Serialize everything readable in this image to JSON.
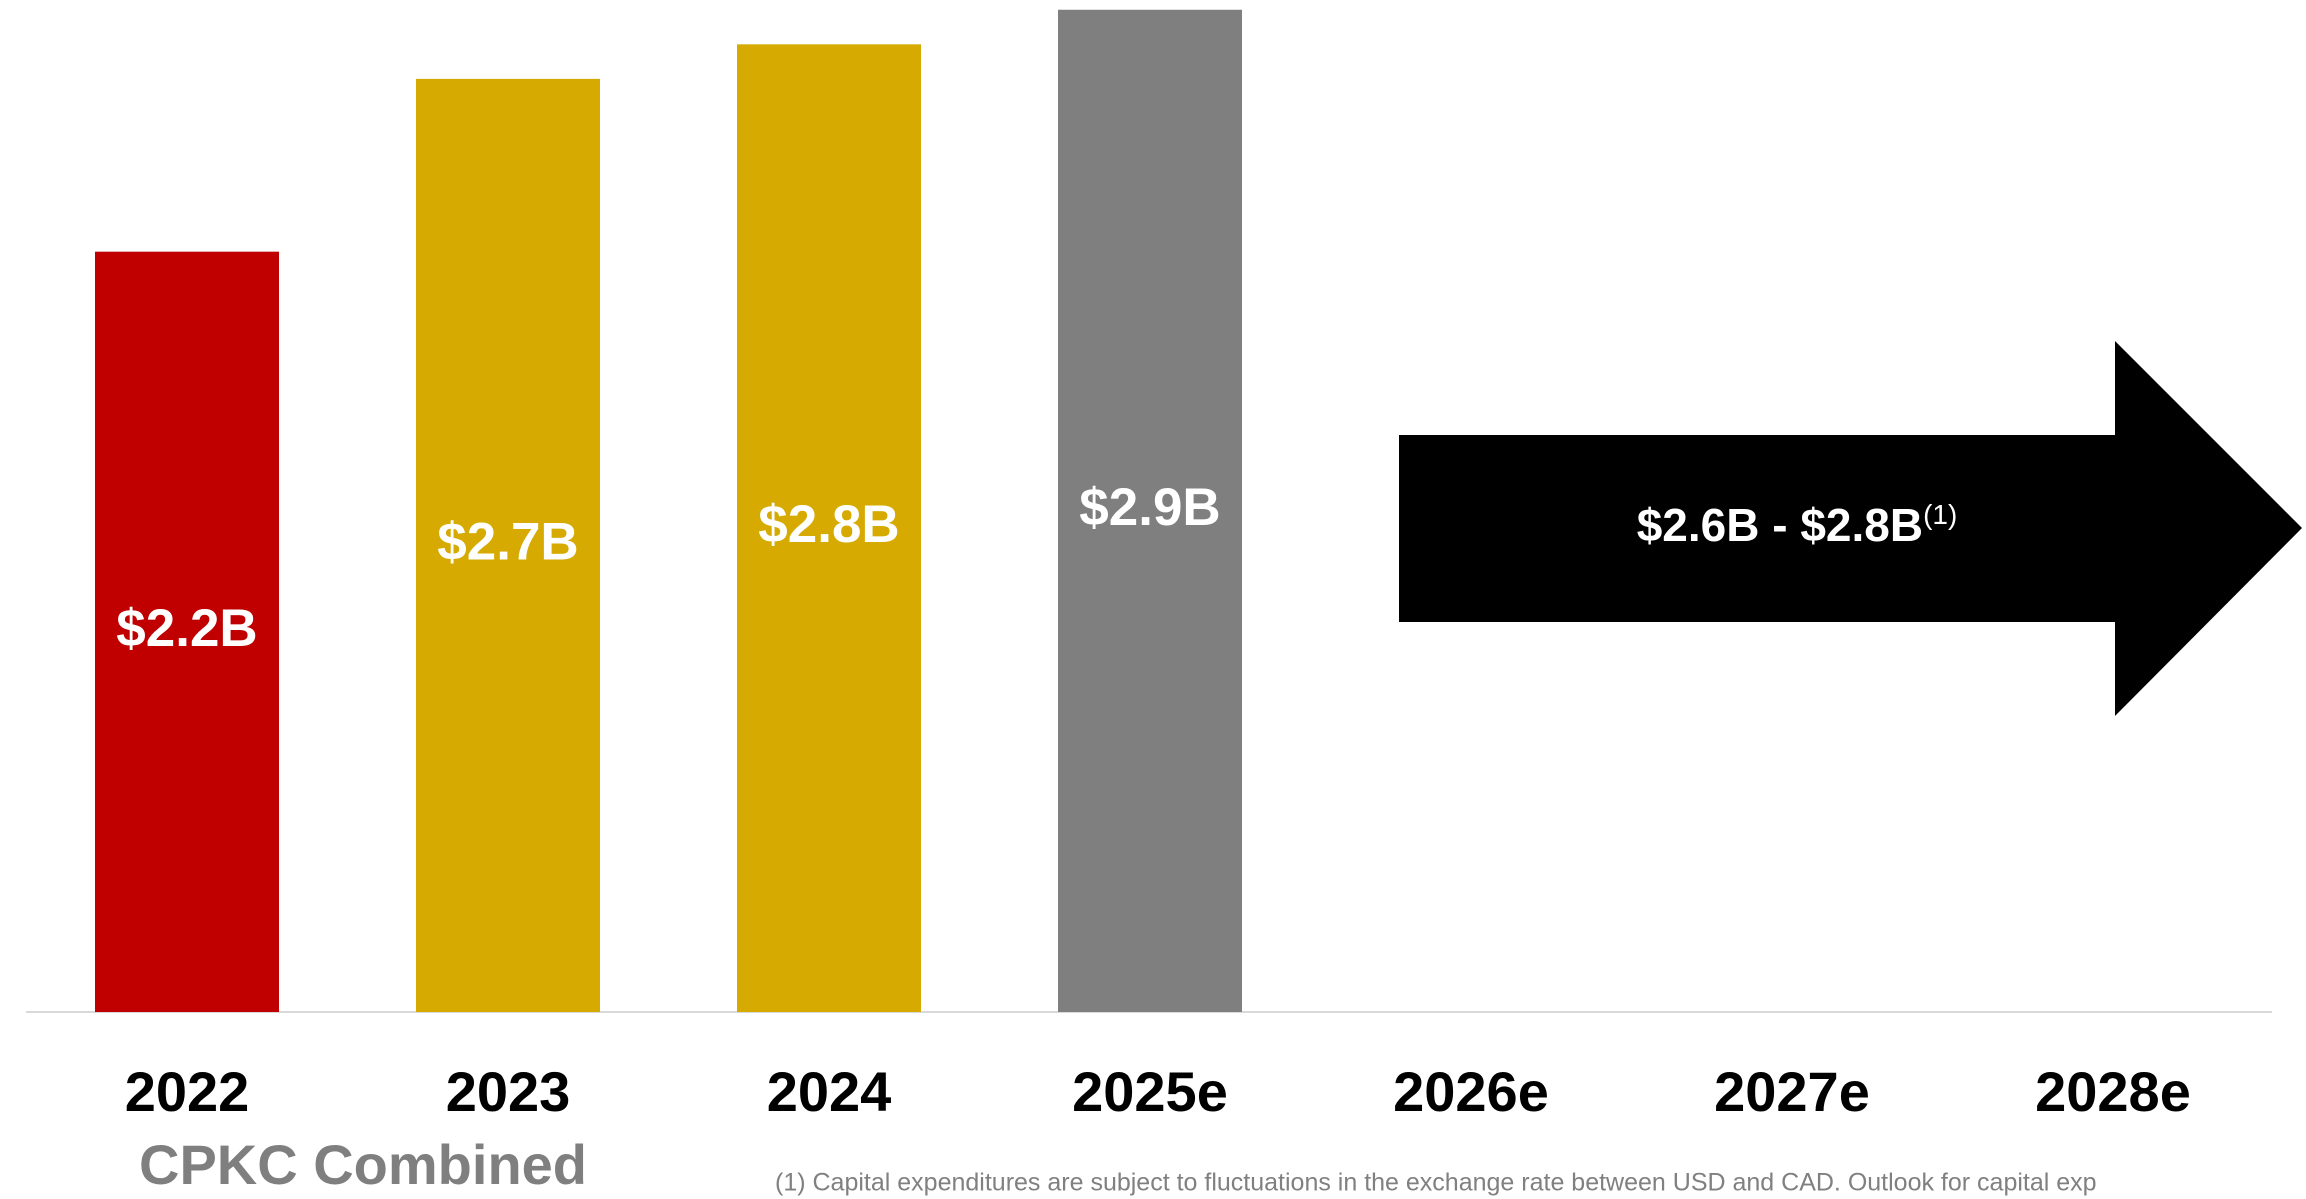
{
  "chart_data": {
    "type": "bar",
    "categories": [
      "2022",
      "2023",
      "2024",
      "2025e",
      "2026e",
      "2027e",
      "2028e"
    ],
    "values": [
      2.2,
      2.7,
      2.8,
      2.9,
      null,
      null,
      null
    ],
    "value_labels": [
      "$2.2B",
      "$2.7B",
      "$2.8B",
      "$2.9B",
      null,
      null,
      null
    ],
    "colors": [
      "#c00000",
      "#d6aa00",
      "#d6aa00",
      "#7f7f7f"
    ],
    "arrow": {
      "label": "$2.6B - $2.8B",
      "note": "(1)",
      "color": "#000000"
    },
    "group_label": "CPKC Combined",
    "footnote": "(1) Capital expenditures are subject to fluctuations in the exchange rate between USD and CAD. Outlook for capital exp"
  }
}
